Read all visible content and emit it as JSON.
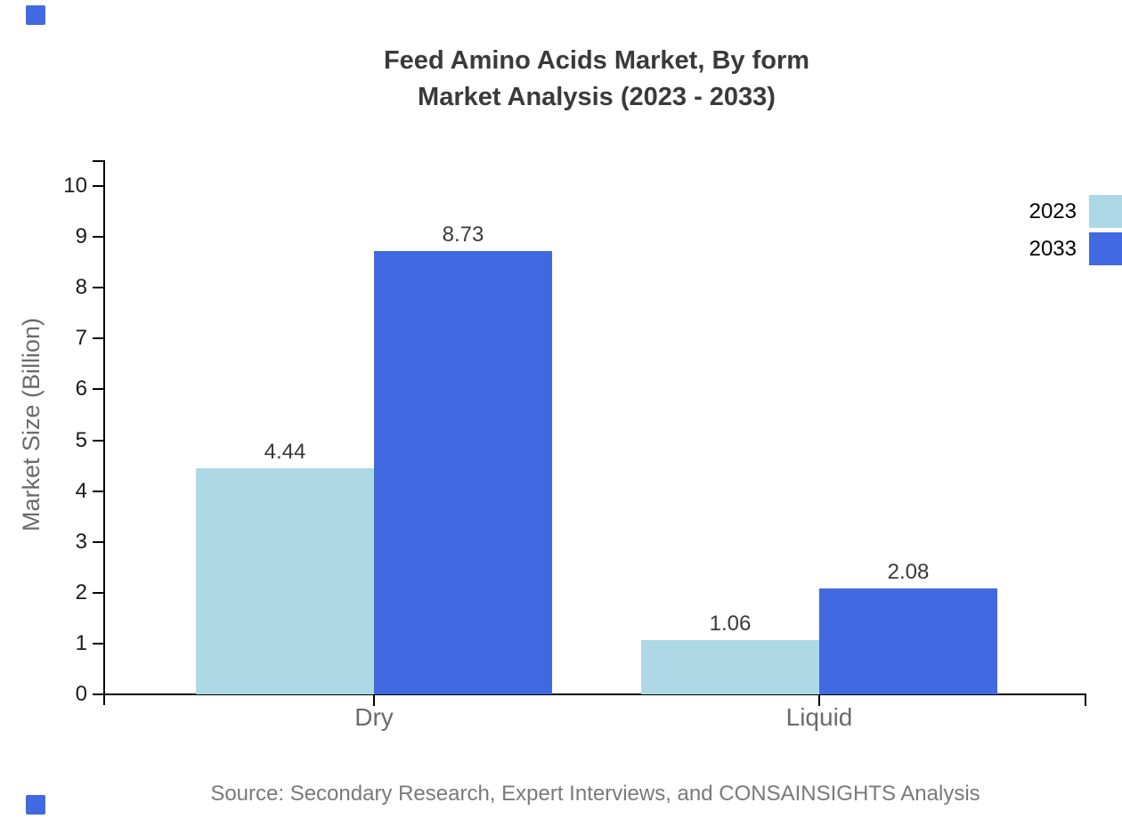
{
  "brand": {
    "accent_color": "#4169e1"
  },
  "chart_data": {
    "type": "bar",
    "title_line1": "Feed Amino Acids Market, By form",
    "title_line2": "Market Analysis (2023 - 2033)",
    "categories": [
      "Dry",
      "Liquid"
    ],
    "series": [
      {
        "name": "2023",
        "color": "#add8e6",
        "values": [
          4.44,
          1.06
        ]
      },
      {
        "name": "2033",
        "color": "#4169e1",
        "values": [
          8.73,
          2.08
        ]
      }
    ],
    "value_labels": [
      [
        "4.44",
        "1.06"
      ],
      [
        "8.73",
        "2.08"
      ]
    ],
    "xlabel": "",
    "ylabel": "Market Size (Billion)",
    "ylim": [
      0,
      10
    ],
    "yticks": [
      "0",
      "1",
      "2",
      "3",
      "4",
      "5",
      "6",
      "7",
      "8",
      "9",
      "10"
    ],
    "grid": false,
    "legend_position": "right",
    "source": "Source: Secondary Research, Expert Interviews, and CONSAINSIGHTS Analysis"
  }
}
